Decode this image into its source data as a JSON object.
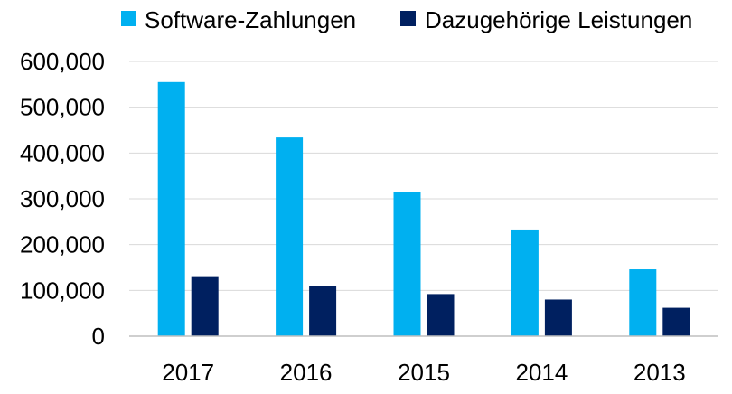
{
  "chart_data": {
    "type": "bar",
    "categories": [
      "2017",
      "2016",
      "2015",
      "2014",
      "2013"
    ],
    "series": [
      {
        "name": "Software-Zahlungen",
        "color": "#00b0f0",
        "values": [
          555000,
          434000,
          315000,
          233000,
          146000
        ]
      },
      {
        "name": "Dazugehörige Leistungen",
        "color": "#002060",
        "values": [
          131000,
          110000,
          92000,
          80000,
          62000
        ]
      }
    ],
    "ylim": [
      0,
      600000
    ],
    "yticks": [
      0,
      100000,
      200000,
      300000,
      400000,
      500000,
      600000
    ],
    "ytick_labels": [
      "0",
      "100,000",
      "200,000",
      "300,000",
      "400,000",
      "500,000",
      "600,000"
    ],
    "grid": true,
    "legend_position": "top"
  }
}
